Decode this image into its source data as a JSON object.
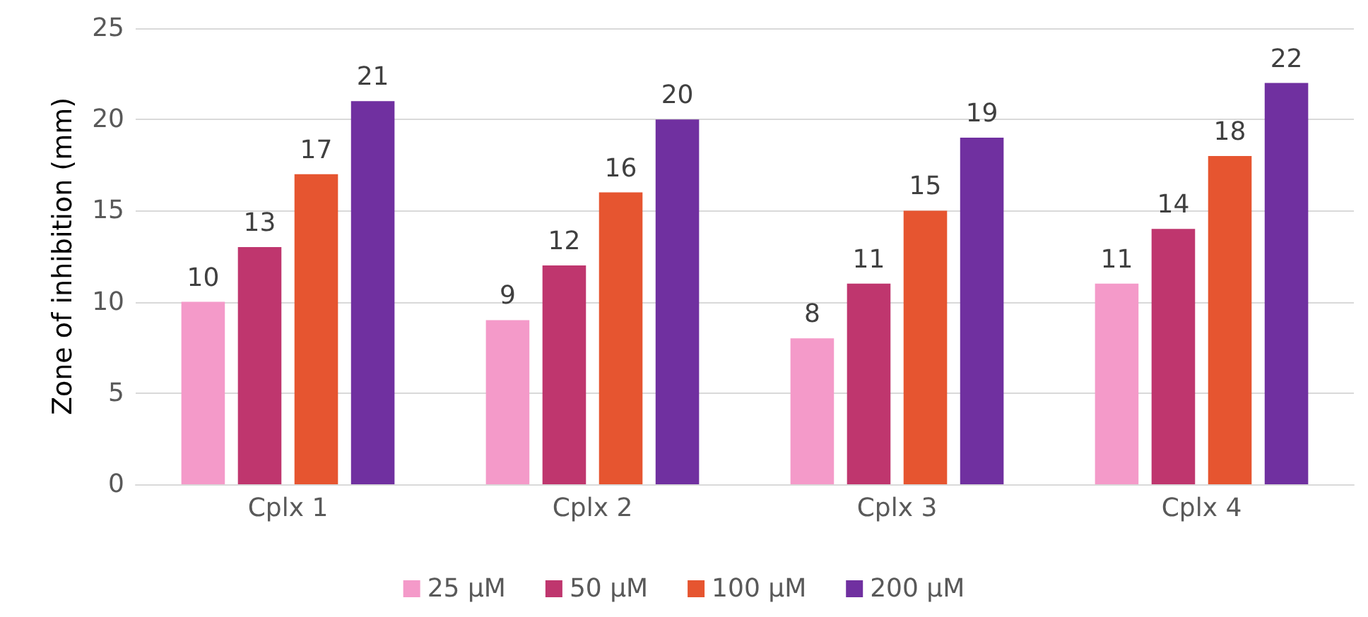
{
  "chart_data": {
    "type": "bar",
    "ylabel": "Zone of inhibition (mm)",
    "categories": [
      "Cplx 1",
      "Cplx 2",
      "Cplx 3",
      "Cplx 4"
    ],
    "series": [
      {
        "name": "25 µM",
        "color": "#f49ac9",
        "values": [
          10,
          9,
          8,
          11
        ]
      },
      {
        "name": "50 µM",
        "color": "#bf366e",
        "values": [
          13,
          12,
          11,
          14
        ]
      },
      {
        "name": "100 µM",
        "color": "#e65530",
        "values": [
          17,
          16,
          15,
          18
        ]
      },
      {
        "name": "200 µM",
        "color": "#7030a0",
        "values": [
          21,
          20,
          19,
          22
        ]
      }
    ],
    "ylim": [
      0,
      25
    ],
    "yticks": [
      0,
      5,
      10,
      15,
      20,
      25
    ],
    "grid": "y",
    "legend": "bottom",
    "data_labels": true
  }
}
